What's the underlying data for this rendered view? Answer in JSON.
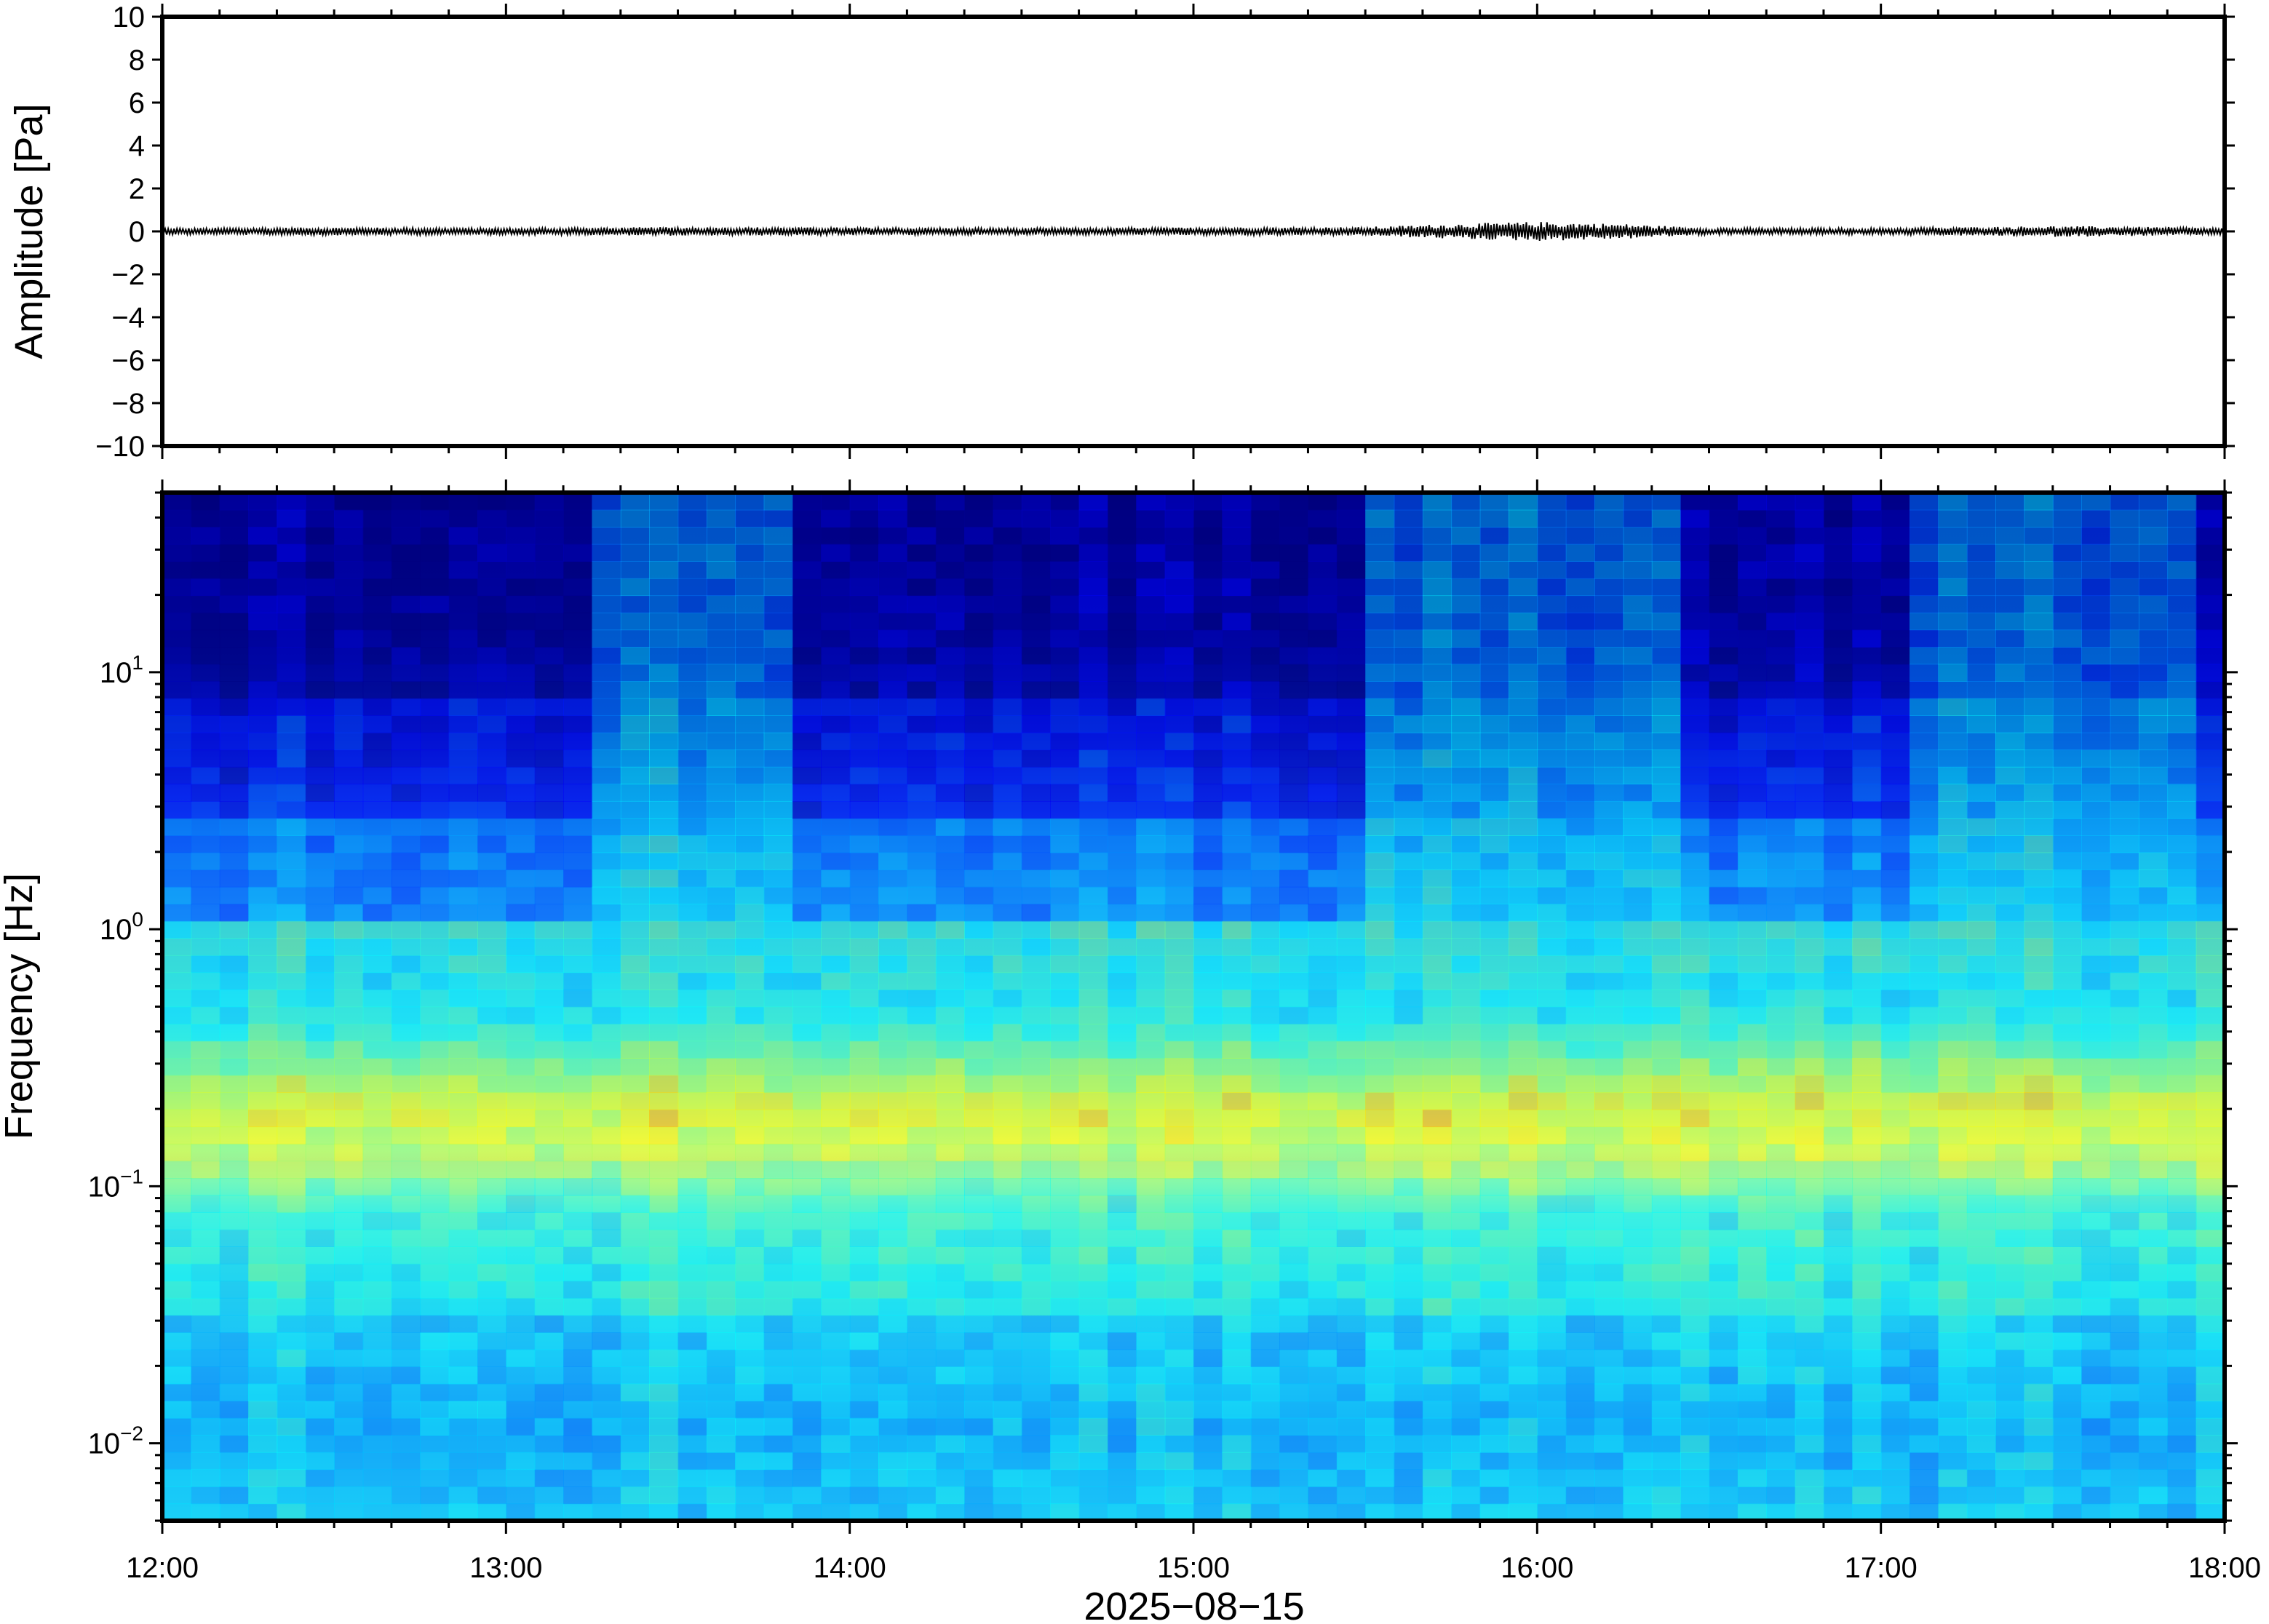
{
  "chart_data": [
    {
      "type": "line",
      "panel": "waveform",
      "ylabel": "Amplitude [Pa]",
      "xlabel": "",
      "ylim": [
        -10,
        10
      ],
      "yticks": [
        10,
        8,
        6,
        4,
        2,
        0,
        -2,
        -4,
        -6,
        -8,
        -10
      ],
      "ytick_labels": [
        "10",
        "8",
        "6",
        "4",
        "2",
        "0",
        "−2",
        "−4",
        "−6",
        "−8",
        "−10"
      ],
      "xlim": [
        "12:00",
        "18:00"
      ],
      "grid": false,
      "series": [
        {
          "color": "#000000",
          "x": [
            "12:00",
            "12:30",
            "13:00",
            "13:30",
            "14:00",
            "14:30",
            "15:00",
            "15:30",
            "15:45",
            "16:00",
            "16:15",
            "16:30",
            "17:00",
            "17:30",
            "17:50",
            "18:00"
          ],
          "envelope": [
            0.15,
            0.18,
            0.15,
            0.2,
            0.18,
            0.15,
            0.18,
            0.2,
            0.35,
            0.45,
            0.35,
            0.15,
            0.15,
            0.25,
            0.2,
            0.15
          ]
        }
      ]
    },
    {
      "type": "heatmap",
      "panel": "spectrogram",
      "ylabel": "Frequency [Hz]",
      "xlabel": "2025−08−15",
      "yscale": "log",
      "ylim": [
        0.005,
        50
      ],
      "yticks": [
        0.01,
        0.1,
        1,
        10
      ],
      "ytick_labels": [
        {
          "base": "10",
          "exp": "−2"
        },
        {
          "base": "10",
          "exp": "−1"
        },
        {
          "base": "10",
          "exp": "0"
        },
        {
          "base": "10",
          "exp": "1"
        }
      ],
      "xlim": [
        "12:00",
        "18:00"
      ],
      "xticks": [
        "12:00",
        "13:00",
        "14:00",
        "15:00",
        "16:00",
        "17:00",
        "18:00"
      ],
      "colormap": "jet",
      "colors": {
        "low": "#00007f",
        "mid": "#43e6c5",
        "high": "#ff8a00"
      },
      "grid": false,
      "features": {
        "microbarom_band_hz": [
          0.15,
          0.25
        ],
        "microbarom_peak_hz": 0.2,
        "high_frequency_energy_periods": [
          [
            "13:13",
            "13:50"
          ],
          [
            "15:30",
            "16:25"
          ],
          [
            "17:03",
            "17:55"
          ]
        ]
      }
    }
  ]
}
